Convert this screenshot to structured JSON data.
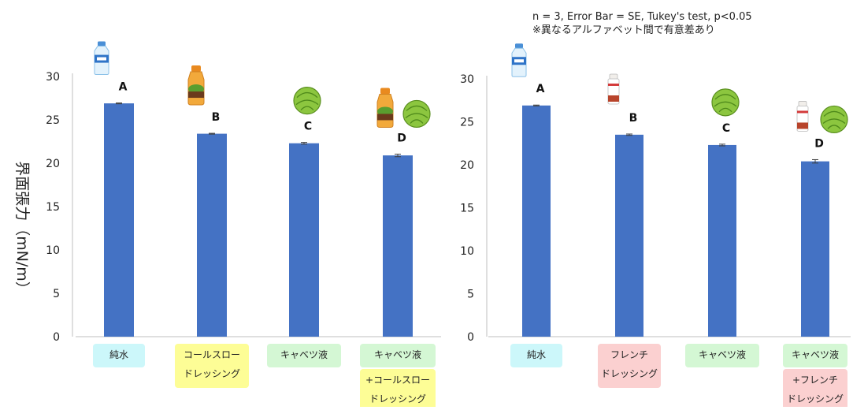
{
  "note": {
    "line1": "n = 3, Error Bar = SE, Tukey's test, p<0.05",
    "line2": "※異なるアルファベット間で有意差あり"
  },
  "ylabel": "界面張力（mN/m）",
  "colors": {
    "bar": "#4472c4",
    "cyan_label": "#ccf7fa",
    "yellow_label": "#fdfd96",
    "green_label": "#d4f7d4",
    "pink_label": "#fbd0d0"
  },
  "chart_data": [
    {
      "type": "bar",
      "ylim": [
        0,
        30
      ],
      "yticks": [
        0,
        5,
        10,
        15,
        20,
        25,
        30
      ],
      "grid": false,
      "categories": [
        "純水",
        "コールスロードレッシング",
        "キャベツ液",
        "キャベツ液+コールスロードレッシング"
      ],
      "values": [
        26.9,
        23.4,
        22.3,
        20.9
      ],
      "errors": [
        0.05,
        0.05,
        0.1,
        0.15
      ],
      "letters": [
        "A",
        "B",
        "C",
        "D"
      ],
      "category_labels": [
        [
          {
            "text": "純水",
            "color": "cyan"
          }
        ],
        [
          {
            "text": "コールスロー",
            "color": "yellow"
          },
          {
            "text": "ドレッシング",
            "color": "yellow"
          }
        ],
        [
          {
            "text": "キャベツ液",
            "color": "green"
          }
        ],
        [
          {
            "text": "キャベツ液",
            "color": "green"
          },
          {
            "text": "+コールスロー",
            "color": "yellow"
          },
          {
            "text": "ドレッシング",
            "color": "yellow"
          }
        ]
      ],
      "icons": [
        [
          "water-bottle"
        ],
        [
          "coleslaw-dressing"
        ],
        [
          "cabbage"
        ],
        [
          "coleslaw-dressing",
          "cabbage"
        ]
      ]
    },
    {
      "type": "bar",
      "ylim": [
        0,
        30
      ],
      "yticks": [
        0,
        5,
        10,
        15,
        20,
        25,
        30
      ],
      "grid": false,
      "categories": [
        "純水",
        "フレンチドレッシング",
        "キャベツ液",
        "キャベツ液+フレンチドレッシング"
      ],
      "values": [
        26.9,
        23.5,
        22.3,
        20.4
      ],
      "errors": [
        0.05,
        0.08,
        0.1,
        0.2
      ],
      "letters": [
        "A",
        "B",
        "C",
        "D"
      ],
      "category_labels": [
        [
          {
            "text": "純水",
            "color": "cyan"
          }
        ],
        [
          {
            "text": "フレンチ",
            "color": "pink"
          },
          {
            "text": "ドレッシング",
            "color": "pink"
          }
        ],
        [
          {
            "text": "キャベツ液",
            "color": "green"
          }
        ],
        [
          {
            "text": "キャベツ液",
            "color": "green"
          },
          {
            "text": "+フレンチ",
            "color": "pink"
          },
          {
            "text": "ドレッシング",
            "color": "pink"
          }
        ]
      ],
      "icons": [
        [
          "water-bottle"
        ],
        [
          "french-dressing"
        ],
        [
          "cabbage"
        ],
        [
          "french-dressing",
          "cabbage"
        ]
      ]
    }
  ]
}
